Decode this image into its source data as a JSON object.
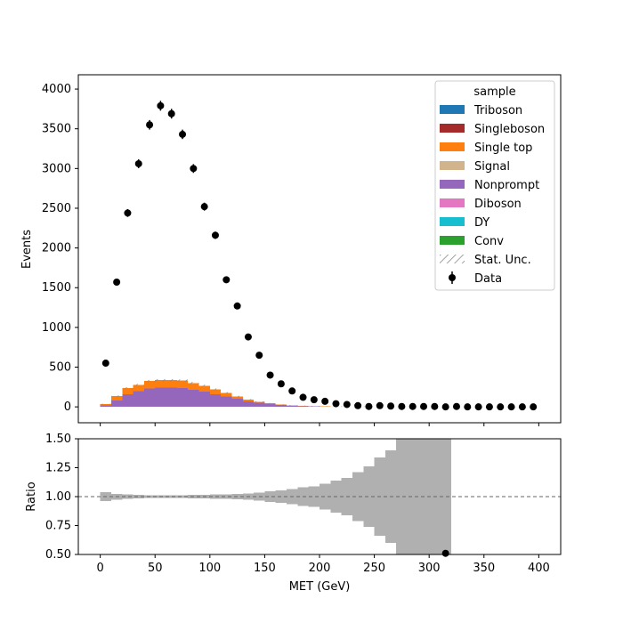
{
  "chart_data": [
    {
      "type": "bar",
      "subtype": "stacked-histogram-with-data-points",
      "xlabel": "",
      "ylabel": "Events",
      "xlim": [
        -20,
        420
      ],
      "ylim": [
        -200,
        4180
      ],
      "x_ticks": [
        0,
        50,
        100,
        150,
        200,
        250,
        300,
        350,
        400
      ],
      "y_ticks": [
        0,
        500,
        1000,
        1500,
        2000,
        2500,
        3000,
        3500,
        4000
      ],
      "bin_edges": [
        0,
        10,
        20,
        30,
        40,
        50,
        60,
        70,
        80,
        90,
        100,
        110,
        120,
        130,
        140,
        150,
        160,
        170,
        180,
        190,
        200,
        210,
        220,
        230,
        240,
        250,
        260,
        270,
        280,
        290,
        300,
        310,
        320,
        330,
        340,
        350,
        360,
        370,
        380,
        390,
        400
      ],
      "series": [
        {
          "name": "Nonprompt",
          "color": "#9467bd",
          "values": [
            20,
            80,
            160,
            200,
            230,
            240,
            240,
            235,
            215,
            190,
            160,
            130,
            100,
            70,
            50,
            35,
            22,
            14,
            9,
            6,
            4,
            3,
            2,
            1,
            1,
            1,
            0,
            0,
            0,
            0,
            0,
            0,
            0,
            0,
            0,
            0,
            0,
            0,
            0,
            0
          ]
        },
        {
          "name": "Single top",
          "color": "#ff7f0e",
          "values": [
            15,
            55,
            75,
            75,
            95,
            95,
            95,
            95,
            85,
            75,
            60,
            45,
            30,
            20,
            13,
            9,
            6,
            4,
            3,
            2,
            1,
            1,
            1,
            0,
            0,
            0,
            0,
            0,
            0,
            0,
            0,
            0,
            0,
            0,
            0,
            0,
            0,
            0,
            0,
            0
          ]
        }
      ],
      "legend": {
        "title": "sample",
        "placement": "top-right",
        "entries": [
          {
            "label": "Triboson",
            "color": "#1f77b4",
            "kind": "patch"
          },
          {
            "label": "Singleboson",
            "color": "#a52a2a",
            "kind": "patch"
          },
          {
            "label": "Single top",
            "color": "#ff7f0e",
            "kind": "patch"
          },
          {
            "label": "Signal",
            "color": "#d2b48c",
            "kind": "patch"
          },
          {
            "label": "Nonprompt",
            "color": "#9467bd",
            "kind": "patch"
          },
          {
            "label": "Diboson",
            "color": "#e377c2",
            "kind": "patch"
          },
          {
            "label": "DY",
            "color": "#17becf",
            "kind": "patch"
          },
          {
            "label": "Conv",
            "color": "#2ca02c",
            "kind": "patch"
          },
          {
            "label": "Stat. Unc.",
            "color": "#888888",
            "kind": "hatch"
          },
          {
            "label": "Data",
            "color": "#000000",
            "kind": "errorbar"
          }
        ]
      },
      "data_points": {
        "name": "Data",
        "x": [
          5,
          15,
          25,
          35,
          45,
          55,
          65,
          75,
          85,
          95,
          105,
          115,
          125,
          135,
          145,
          155,
          165,
          175,
          185,
          195,
          205,
          215,
          225,
          235,
          245,
          255,
          265,
          275,
          285,
          295,
          305,
          315,
          325,
          335,
          345,
          355,
          365,
          375,
          385,
          395
        ],
        "y": [
          550,
          1570,
          2440,
          3060,
          3550,
          3790,
          3690,
          3430,
          3000,
          2520,
          2160,
          1600,
          1270,
          880,
          650,
          400,
          290,
          200,
          120,
          90,
          70,
          40,
          30,
          15,
          5,
          15,
          10,
          5,
          5,
          5,
          5,
          0,
          5,
          0,
          0,
          0,
          0,
          0,
          0,
          0
        ],
        "err": [
          23,
          40,
          49,
          55,
          60,
          62,
          61,
          59,
          55,
          50,
          46,
          40,
          36,
          30,
          25,
          20,
          17,
          14,
          11,
          10,
          8,
          7,
          6,
          4,
          3,
          4,
          3,
          3,
          3,
          3,
          3,
          2,
          3,
          2,
          2,
          2,
          2,
          2,
          2,
          2
        ]
      }
    },
    {
      "type": "bar",
      "subtype": "ratio-uncertainty-band",
      "xlabel": "MET (GeV)",
      "ylabel": "Ratio",
      "xlim": [
        -20,
        420
      ],
      "ylim": [
        0.5,
        1.5
      ],
      "x_ticks": [
        0,
        50,
        100,
        150,
        200,
        250,
        300,
        350,
        400
      ],
      "y_ticks": [
        0.5,
        0.75,
        1.0,
        1.25,
        1.5
      ],
      "y_tick_labels": [
        "0.50",
        "0.75",
        "1.00",
        "1.25",
        "1.50"
      ],
      "reference_line": 1.0,
      "band_bin_edges": [
        0,
        10,
        20,
        30,
        40,
        50,
        60,
        70,
        80,
        90,
        100,
        110,
        120,
        130,
        140,
        150,
        160,
        170,
        180,
        190,
        200,
        210,
        220,
        230,
        240,
        250,
        260,
        270,
        280,
        300,
        320
      ],
      "band_half_width": [
        0.04,
        0.025,
        0.02,
        0.015,
        0.012,
        0.012,
        0.012,
        0.012,
        0.015,
        0.015,
        0.018,
        0.018,
        0.022,
        0.028,
        0.035,
        0.045,
        0.055,
        0.065,
        0.08,
        0.09,
        0.11,
        0.14,
        0.16,
        0.21,
        0.26,
        0.34,
        0.4,
        0.6,
        0.6,
        0.7
      ],
      "data_points": {
        "x": [
          315
        ],
        "y": [
          0.51
        ]
      }
    }
  ]
}
